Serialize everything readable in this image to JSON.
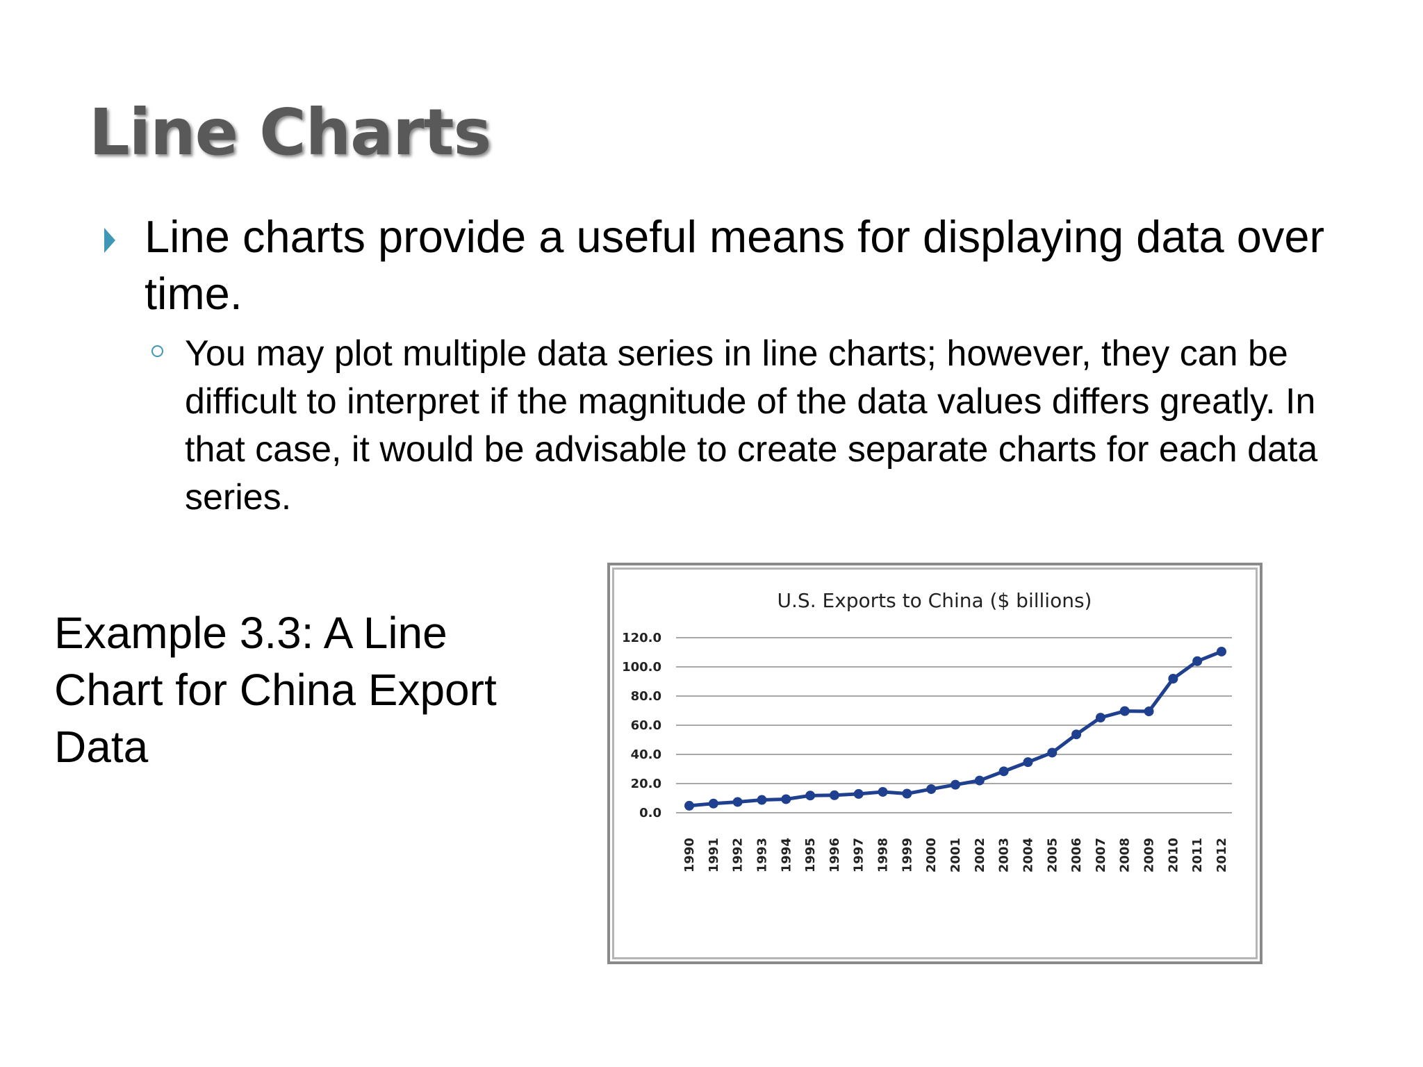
{
  "slide": {
    "title": "Line Charts",
    "bullet_main": "Line charts provide a useful means for displaying data over time.",
    "bullet_sub": "You may plot multiple data series in line charts; however, they can be difficult to interpret if the magnitude of the data values differs greatly. In that case, it would be advisable to create separate charts for each data series.",
    "example_label": "Example 3.3: A Line Chart for China Export Data",
    "bullet_color": "#3e97b5"
  },
  "chart_data": {
    "type": "line",
    "title": "U.S. Exports to China ($ billions)",
    "xlabel": "",
    "ylabel": "",
    "ylim": [
      0,
      120
    ],
    "yticks": [
      "0.0",
      "20.0",
      "40.0",
      "60.0",
      "80.0",
      "100.0",
      "120.0"
    ],
    "grid": true,
    "legend": "none",
    "line_color": "#1f3f8f",
    "categories": [
      "1990",
      "1991",
      "1992",
      "1993",
      "1994",
      "1995",
      "1996",
      "1997",
      "1998",
      "1999",
      "2000",
      "2001",
      "2002",
      "2003",
      "2004",
      "2005",
      "2006",
      "2007",
      "2008",
      "2009",
      "2010",
      "2011",
      "2012"
    ],
    "series": [
      {
        "values": [
          4.8,
          6.3,
          7.4,
          8.8,
          9.3,
          11.8,
          12.0,
          12.9,
          14.3,
          13.1,
          16.2,
          19.2,
          22.1,
          28.4,
          34.7,
          41.2,
          53.7,
          65.2,
          69.7,
          69.5,
          91.9,
          103.9,
          110.5
        ]
      }
    ]
  }
}
